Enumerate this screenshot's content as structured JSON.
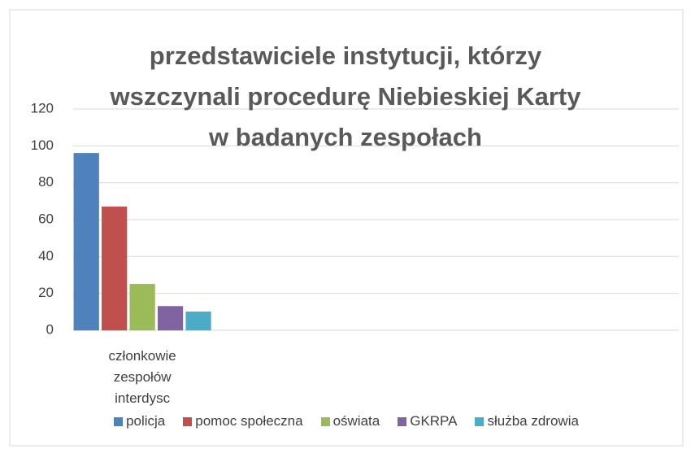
{
  "chart_data": {
    "type": "bar",
    "title": "przedstawiciele instytucji, którzy wszczynali procedurę Niebieskiej Karty w badanych zespołach",
    "categories": [
      "członkowie zespołów interdysc",
      null,
      null,
      null
    ],
    "series": [
      {
        "name": "policja",
        "color": "#4f81bd",
        "values": [
          96,
          null,
          null,
          null
        ]
      },
      {
        "name": "pomoc społeczna",
        "color": "#c0504d",
        "values": [
          67,
          null,
          null,
          null
        ]
      },
      {
        "name": "oświata",
        "color": "#9bbb59",
        "values": [
          25,
          null,
          null,
          null
        ]
      },
      {
        "name": "GKRPA",
        "color": "#8064a2",
        "values": [
          13,
          null,
          null,
          null
        ]
      },
      {
        "name": "służba zdrowia",
        "color": "#4bacc6",
        "values": [
          10,
          null,
          null,
          null
        ]
      }
    ],
    "ylim": [
      0,
      120
    ],
    "yticks": [
      0,
      20,
      40,
      60,
      80,
      100,
      120
    ],
    "grid": true,
    "legend": "bottom"
  }
}
